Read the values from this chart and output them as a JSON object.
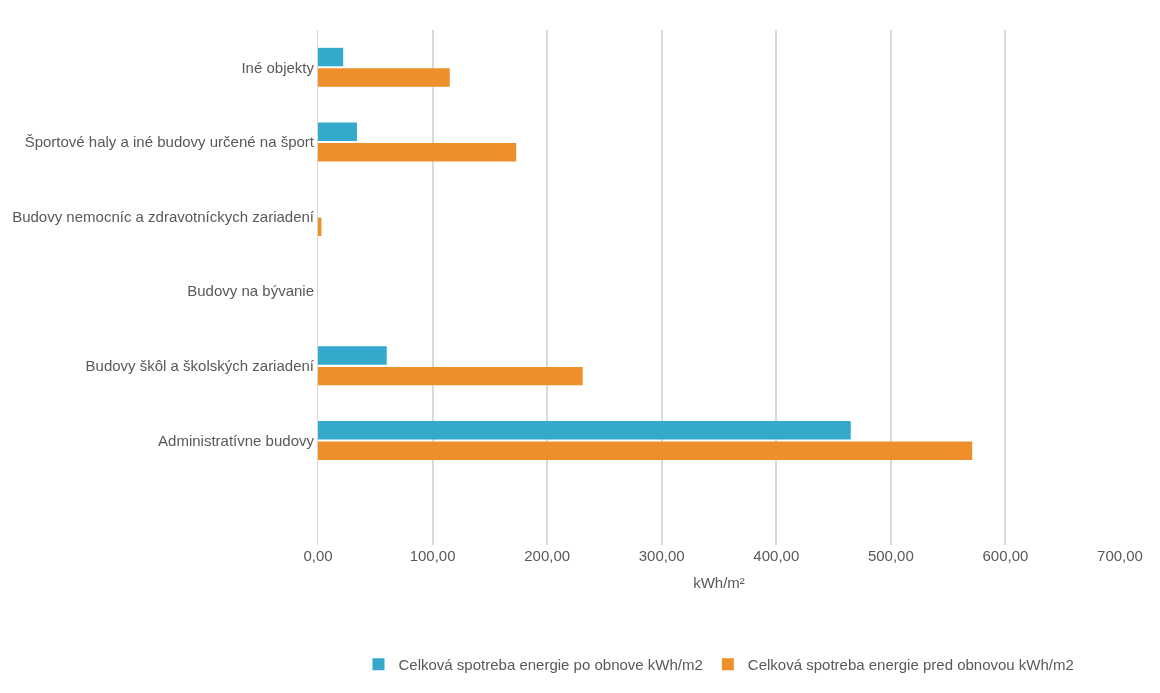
{
  "chart_data": {
    "type": "bar",
    "orientation": "horizontal",
    "xlabel": "kWh/m²",
    "categories": [
      "Iné objekty",
      "Športové haly a iné budovy určené na šport",
      "Budovy nemocníc a zdravotníckych zariadení",
      "Budovy na bývanie",
      "Budovy škôl a školských zariadení",
      "Administratívne budovy"
    ],
    "series": [
      {
        "name": "Celková spotreba energie po obnove kWh/m2",
        "color": "#35a9cc",
        "values": [
          22,
          34,
          0,
          0,
          60,
          465
        ]
      },
      {
        "name": "Celková spotreba energie pred obnovou kWh/m2",
        "color": "#ee8f2b",
        "values": [
          115,
          173,
          3,
          0,
          231,
          571
        ]
      }
    ],
    "xlim": [
      0,
      700
    ],
    "xticks": [
      {
        "value": 0,
        "label": "0,00"
      },
      {
        "value": 100,
        "label": "100,00"
      },
      {
        "value": 200,
        "label": "200,00"
      },
      {
        "value": 300,
        "label": "300,00"
      },
      {
        "value": 400,
        "label": "400,00"
      },
      {
        "value": 500,
        "label": "500,00"
      },
      {
        "value": 600,
        "label": "600,00"
      },
      {
        "value": 700,
        "label": "700,00"
      }
    ],
    "grid": "x",
    "legend": "bottom"
  }
}
